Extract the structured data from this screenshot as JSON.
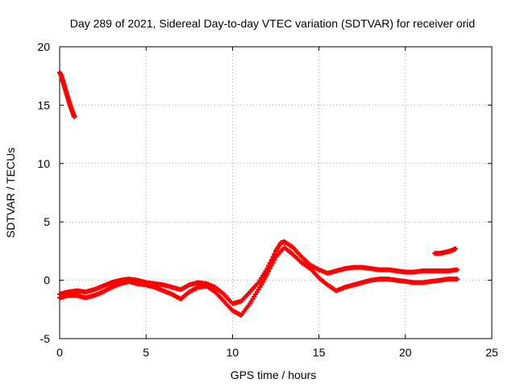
{
  "chart_data": {
    "type": "scatter",
    "title": "Day 289 of 2021, Sidereal Day-to-day VTEC variation (SDTVAR) for receiver orid",
    "xlabel": "GPS time / hours",
    "ylabel": "SDTVAR / TECUs",
    "xlim": [
      0,
      25
    ],
    "ylim": [
      -5,
      20
    ],
    "xticks": [
      0,
      5,
      10,
      15,
      20,
      25
    ],
    "yticks": [
      -5,
      0,
      5,
      10,
      15,
      20
    ],
    "grid": true,
    "marker": "+",
    "series": [
      {
        "name": "early-descent",
        "color": "#ff0000",
        "x": [
          0.0,
          0.1,
          0.2,
          0.3,
          0.4,
          0.5,
          0.6,
          0.7,
          0.8,
          0.85
        ],
        "y": [
          17.8,
          17.5,
          17.0,
          16.5,
          16.0,
          15.5,
          15.0,
          14.6,
          14.2,
          14.0
        ]
      },
      {
        "name": "sdtvar-band-a",
        "color": "#ff0000",
        "x": [
          0.0,
          0.5,
          1.0,
          1.5,
          2.0,
          2.5,
          3.0,
          3.5,
          4.0,
          4.5,
          5.0,
          5.5,
          6.0,
          6.5,
          7.0,
          7.5,
          8.0,
          8.5,
          9.0,
          9.5,
          10.0,
          10.5,
          11.0,
          11.5,
          12.0,
          12.5,
          12.8,
          13.0,
          13.5,
          14.0,
          14.5,
          15.0,
          15.5,
          16.0,
          16.5,
          17.0,
          17.5,
          18.0,
          18.5,
          19.0,
          19.5,
          20.0,
          20.5,
          21.0,
          21.5,
          22.0,
          22.5,
          23.0
        ],
        "y": [
          -1.2,
          -1.0,
          -0.9,
          -1.0,
          -0.8,
          -0.5,
          -0.2,
          0.0,
          0.1,
          0.0,
          -0.2,
          -0.3,
          -0.4,
          -0.6,
          -0.8,
          -0.4,
          -0.2,
          -0.3,
          -0.6,
          -1.2,
          -2.0,
          -1.8,
          -1.0,
          -0.2,
          1.0,
          2.5,
          3.2,
          3.3,
          2.8,
          2.0,
          1.3,
          0.9,
          0.6,
          0.8,
          1.0,
          1.1,
          1.1,
          1.0,
          0.9,
          0.9,
          0.8,
          0.7,
          0.7,
          0.8,
          0.8,
          0.8,
          0.8,
          0.9
        ]
      },
      {
        "name": "sdtvar-band-b",
        "color": "#ff0000",
        "x": [
          0.0,
          0.5,
          1.0,
          1.5,
          2.0,
          2.5,
          3.0,
          3.5,
          4.0,
          4.5,
          5.0,
          5.5,
          6.0,
          6.5,
          7.0,
          7.5,
          8.0,
          8.5,
          9.0,
          9.5,
          10.0,
          10.5,
          11.0,
          11.5,
          12.0,
          12.5,
          13.0,
          13.5,
          14.0,
          14.5,
          15.0,
          15.5,
          16.0,
          16.5,
          17.0,
          17.5,
          18.0,
          18.5,
          19.0,
          19.5,
          20.0,
          20.5,
          21.0,
          21.5,
          22.0,
          22.5,
          23.0
        ],
        "y": [
          -1.5,
          -1.3,
          -1.3,
          -1.5,
          -1.3,
          -1.0,
          -0.6,
          -0.3,
          -0.1,
          -0.3,
          -0.4,
          -0.6,
          -0.9,
          -1.2,
          -1.6,
          -1.0,
          -0.6,
          -0.5,
          -1.0,
          -1.8,
          -2.6,
          -3.0,
          -2.0,
          -0.8,
          0.5,
          2.0,
          2.8,
          2.2,
          1.5,
          1.0,
          0.2,
          -0.4,
          -0.9,
          -0.6,
          -0.4,
          -0.2,
          0.0,
          0.1,
          0.1,
          0.0,
          -0.1,
          -0.2,
          -0.2,
          -0.1,
          0.0,
          0.1,
          0.1
        ]
      },
      {
        "name": "late-segment",
        "color": "#ff0000",
        "x": [
          21.7,
          22.0,
          22.3,
          22.6,
          22.9
        ],
        "y": [
          2.3,
          2.3,
          2.4,
          2.5,
          2.7
        ]
      }
    ]
  }
}
